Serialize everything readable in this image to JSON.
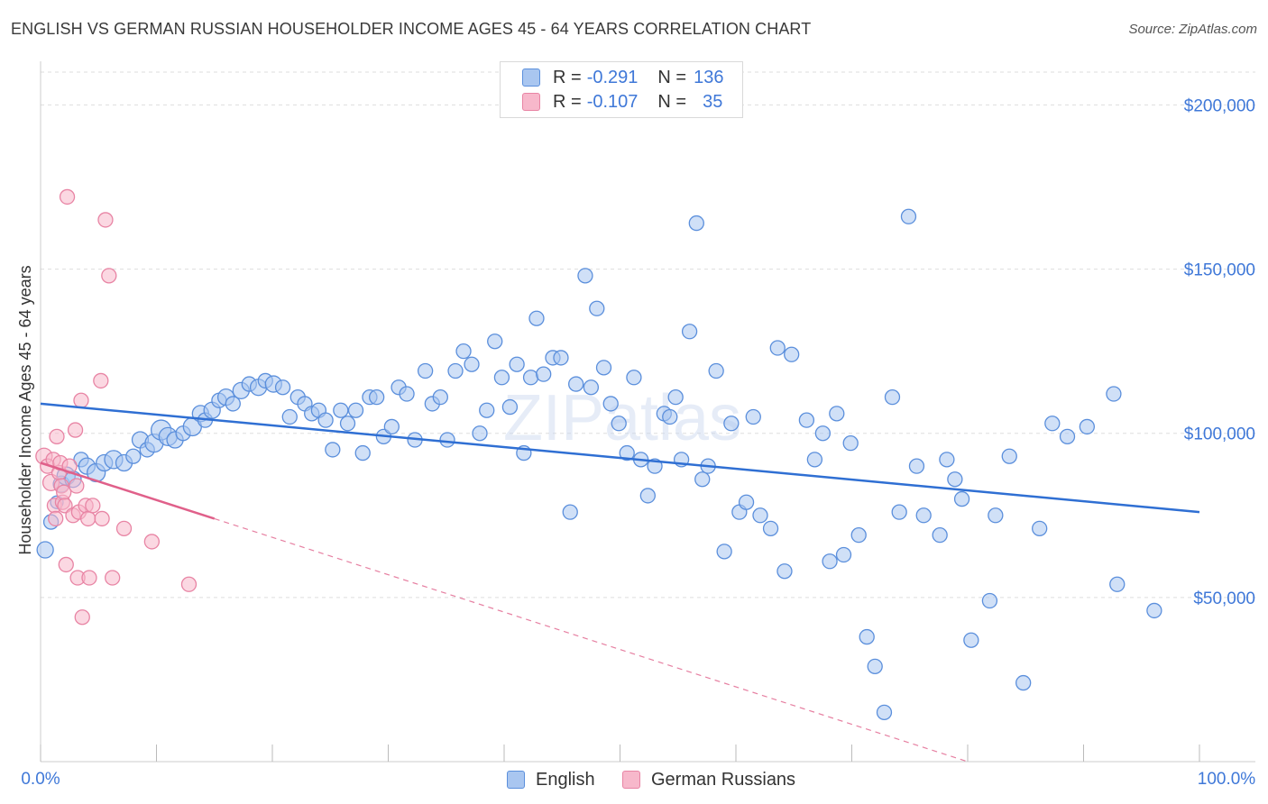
{
  "title": "ENGLISH VS GERMAN RUSSIAN HOUSEHOLDER INCOME AGES 45 - 64 YEARS CORRELATION CHART",
  "source": "Source: ZipAtlas.com",
  "watermark": "ZIPatlas",
  "legend": {
    "rows": [
      {
        "r_label": "R = ",
        "r_value": "-0.291",
        "n_label": "N = ",
        "n_value": "136"
      },
      {
        "r_label": "R = ",
        "r_value": "-0.107",
        "n_label": "N = ",
        "n_value": "35"
      }
    ]
  },
  "colors": {
    "english_fill": "#a9c6f0",
    "english_stroke": "#5b8fdc",
    "english_line": "#2f6fd3",
    "german_fill": "#f7b8cb",
    "german_stroke": "#e884a4",
    "german_line": "#e0608a",
    "tick_text": "#3f78d8",
    "grid": "#dddddd"
  },
  "chart_data": {
    "type": "scatter",
    "title": "ENGLISH VS GERMAN RUSSIAN HOUSEHOLDER INCOME AGES 45 - 64 YEARS CORRELATION CHART",
    "xlabel": "",
    "ylabel": "Householder Income Ages 45 - 64 years",
    "xlim": [
      0,
      100
    ],
    "ylim": [
      0,
      210000
    ],
    "x_tick_labels": [
      "0.0%",
      "100.0%"
    ],
    "y_ticks": [
      50000,
      100000,
      150000,
      200000
    ],
    "y_tick_labels": [
      "$50,000",
      "$100,000",
      "$150,000",
      "$200,000"
    ],
    "series": [
      {
        "name": "English",
        "r": -0.291,
        "n": 136,
        "trend": {
          "x0": 0,
          "y0": 109000,
          "x1": 100,
          "y1": 76000
        },
        "points": [
          [
            0.4,
            64500,
            9
          ],
          [
            0.9,
            73000,
            8
          ],
          [
            1.4,
            79000,
            7
          ],
          [
            1.8,
            84500,
            9
          ],
          [
            2.2,
            87000,
            10
          ],
          [
            2.8,
            86000,
            9
          ],
          [
            3.5,
            92000,
            8
          ],
          [
            4.0,
            90000,
            9
          ],
          [
            4.8,
            88000,
            10
          ],
          [
            5.5,
            91000,
            9
          ],
          [
            6.3,
            92000,
            10
          ],
          [
            7.2,
            91000,
            9
          ],
          [
            8.0,
            93000,
            8
          ],
          [
            8.6,
            98000,
            9
          ],
          [
            9.2,
            95000,
            8
          ],
          [
            9.8,
            97000,
            10
          ],
          [
            10.4,
            101000,
            11
          ],
          [
            11.0,
            99000,
            10
          ],
          [
            11.6,
            98000,
            9
          ],
          [
            12.3,
            100000,
            8
          ],
          [
            13.1,
            102000,
            10
          ],
          [
            13.8,
            106000,
            9
          ],
          [
            14.2,
            104000,
            8
          ],
          [
            14.8,
            107000,
            9
          ],
          [
            15.4,
            110000,
            8
          ],
          [
            16.0,
            111000,
            9
          ],
          [
            16.6,
            109000,
            8
          ],
          [
            17.3,
            113000,
            9
          ],
          [
            18.0,
            115000,
            8
          ],
          [
            18.8,
            114000,
            9
          ],
          [
            19.4,
            116000,
            8
          ],
          [
            20.1,
            115000,
            9
          ],
          [
            20.9,
            114000,
            8
          ],
          [
            21.5,
            105000,
            8
          ],
          [
            22.2,
            111000,
            8
          ],
          [
            22.8,
            109000,
            8
          ],
          [
            23.4,
            106000,
            8
          ],
          [
            24.0,
            107000,
            8
          ],
          [
            24.6,
            104000,
            8
          ],
          [
            25.2,
            95000,
            8
          ],
          [
            25.9,
            107000,
            8
          ],
          [
            26.5,
            103000,
            8
          ],
          [
            27.2,
            107000,
            8
          ],
          [
            27.8,
            94000,
            8
          ],
          [
            28.4,
            111000,
            8
          ],
          [
            29.0,
            111000,
            8
          ],
          [
            29.6,
            99000,
            8
          ],
          [
            30.3,
            102000,
            8
          ],
          [
            30.9,
            114000,
            8
          ],
          [
            31.6,
            112000,
            8
          ],
          [
            32.3,
            98000,
            8
          ],
          [
            33.2,
            119000,
            8
          ],
          [
            33.8,
            109000,
            8
          ],
          [
            34.5,
            111000,
            8
          ],
          [
            35.1,
            98000,
            8
          ],
          [
            35.8,
            119000,
            8
          ],
          [
            36.5,
            125000,
            8
          ],
          [
            37.2,
            121000,
            8
          ],
          [
            37.9,
            100000,
            8
          ],
          [
            38.5,
            107000,
            8
          ],
          [
            39.2,
            128000,
            8
          ],
          [
            39.8,
            117000,
            8
          ],
          [
            40.5,
            108000,
            8
          ],
          [
            41.1,
            121000,
            8
          ],
          [
            41.7,
            94000,
            8
          ],
          [
            42.3,
            117000,
            8
          ],
          [
            42.8,
            135000,
            8
          ],
          [
            43.4,
            118000,
            8
          ],
          [
            44.2,
            123000,
            8
          ],
          [
            44.9,
            123000,
            8
          ],
          [
            45.7,
            76000,
            8
          ],
          [
            46.2,
            115000,
            8
          ],
          [
            47.0,
            148000,
            8
          ],
          [
            47.5,
            114000,
            8
          ],
          [
            48.0,
            138000,
            8
          ],
          [
            48.6,
            120000,
            8
          ],
          [
            49.2,
            109000,
            8
          ],
          [
            49.9,
            103000,
            8
          ],
          [
            50.6,
            94000,
            8
          ],
          [
            51.2,
            117000,
            8
          ],
          [
            51.8,
            92000,
            8
          ],
          [
            52.4,
            81000,
            8
          ],
          [
            53.0,
            90000,
            8
          ],
          [
            53.8,
            106000,
            8
          ],
          [
            54.3,
            105000,
            8
          ],
          [
            54.8,
            111000,
            8
          ],
          [
            55.3,
            92000,
            8
          ],
          [
            56.0,
            131000,
            8
          ],
          [
            56.6,
            164000,
            8
          ],
          [
            57.1,
            86000,
            8
          ],
          [
            57.6,
            90000,
            8
          ],
          [
            58.3,
            119000,
            8
          ],
          [
            59.0,
            64000,
            8
          ],
          [
            59.6,
            103000,
            8
          ],
          [
            60.3,
            76000,
            8
          ],
          [
            60.9,
            79000,
            8
          ],
          [
            61.5,
            105000,
            8
          ],
          [
            62.1,
            75000,
            8
          ],
          [
            63.0,
            71000,
            8
          ],
          [
            63.6,
            126000,
            8
          ],
          [
            64.2,
            58000,
            8
          ],
          [
            64.8,
            124000,
            8
          ],
          [
            66.1,
            104000,
            8
          ],
          [
            66.8,
            92000,
            8
          ],
          [
            67.5,
            100000,
            8
          ],
          [
            68.1,
            61000,
            8
          ],
          [
            68.7,
            106000,
            8
          ],
          [
            69.3,
            63000,
            8
          ],
          [
            69.9,
            97000,
            8
          ],
          [
            70.6,
            69000,
            8
          ],
          [
            71.3,
            38000,
            8
          ],
          [
            72.0,
            29000,
            8
          ],
          [
            72.8,
            15000,
            8
          ],
          [
            73.5,
            111000,
            8
          ],
          [
            74.1,
            76000,
            8
          ],
          [
            74.9,
            166000,
            8
          ],
          [
            75.6,
            90000,
            8
          ],
          [
            76.2,
            75000,
            8
          ],
          [
            77.6,
            69000,
            8
          ],
          [
            78.2,
            92000,
            8
          ],
          [
            78.9,
            86000,
            8
          ],
          [
            79.5,
            80000,
            8
          ],
          [
            80.3,
            37000,
            8
          ],
          [
            81.9,
            49000,
            8
          ],
          [
            82.4,
            75000,
            8
          ],
          [
            83.6,
            93000,
            8
          ],
          [
            84.8,
            24000,
            8
          ],
          [
            86.2,
            71000,
            8
          ],
          [
            87.3,
            103000,
            8
          ],
          [
            88.6,
            99000,
            8
          ],
          [
            90.3,
            102000,
            8
          ],
          [
            92.6,
            112000,
            8
          ],
          [
            92.9,
            54000,
            8
          ],
          [
            96.1,
            46000,
            8
          ]
        ]
      },
      {
        "name": "German Russians",
        "r": -0.107,
        "n": 35,
        "trend": {
          "x0": 0,
          "y0": 91000,
          "x1": 15,
          "y1": 74000
        },
        "trend_extension": {
          "x0": 15,
          "y0": 74000,
          "x1": 80,
          "y1": 0
        },
        "points": [
          [
            0.3,
            93000,
            9
          ],
          [
            0.6,
            90000,
            8
          ],
          [
            0.9,
            85000,
            9
          ],
          [
            1.1,
            92000,
            8
          ],
          [
            1.2,
            78000,
            8
          ],
          [
            1.3,
            74000,
            8
          ],
          [
            1.4,
            99000,
            8
          ],
          [
            1.6,
            88000,
            8
          ],
          [
            1.7,
            91000,
            8
          ],
          [
            1.8,
            84000,
            8
          ],
          [
            1.9,
            79000,
            8
          ],
          [
            2.0,
            82000,
            8
          ],
          [
            2.1,
            78000,
            8
          ],
          [
            2.2,
            60000,
            8
          ],
          [
            2.3,
            172000,
            8
          ],
          [
            2.5,
            90000,
            8
          ],
          [
            2.8,
            75000,
            8
          ],
          [
            3.0,
            101000,
            8
          ],
          [
            3.1,
            84000,
            8
          ],
          [
            3.2,
            56000,
            8
          ],
          [
            3.3,
            76000,
            8
          ],
          [
            3.6,
            44000,
            8
          ],
          [
            3.9,
            78000,
            8
          ],
          [
            4.1,
            74000,
            8
          ],
          [
            4.2,
            56000,
            8
          ],
          [
            4.5,
            78000,
            8
          ],
          [
            5.2,
            116000,
            8
          ],
          [
            5.3,
            74000,
            8
          ],
          [
            5.6,
            165000,
            8
          ],
          [
            5.9,
            148000,
            8
          ],
          [
            6.2,
            56000,
            8
          ],
          [
            7.2,
            71000,
            8
          ],
          [
            9.6,
            67000,
            8
          ],
          [
            12.8,
            54000,
            8
          ],
          [
            3.5,
            110000,
            8
          ]
        ]
      }
    ]
  },
  "bottom_legend": {
    "english": "English",
    "german": "German Russians"
  }
}
